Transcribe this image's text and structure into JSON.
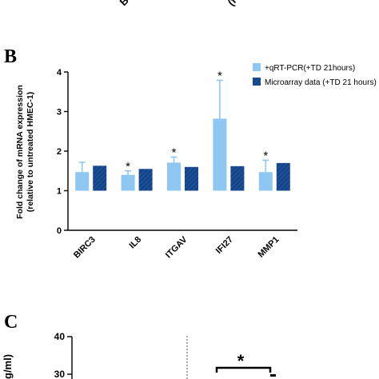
{
  "top_fragment": {
    "tick_labels": [
      "B",
      "(f"
    ]
  },
  "panel_b": {
    "panel_label": "B",
    "chart_data": {
      "type": "bar",
      "categories": [
        "BIRC3",
        "IL8",
        "ITGAV",
        "IFI27",
        "MMP1"
      ],
      "ylabel_line1": "Fold change of mRNA expression",
      "ylabel_line2": "(relative to untreated HMEC-1)",
      "ylim": [
        0,
        4
      ],
      "yticks": [
        "0",
        "1",
        "2",
        "3",
        "4"
      ],
      "baseline": 1,
      "series": [
        {
          "name": "+qRT-PCR(+TD 21hours)",
          "color": "#8ec8f2",
          "pattern": "solid",
          "values": [
            1.47,
            1.4,
            1.71,
            2.82,
            1.47
          ],
          "errors": [
            0.25,
            0.1,
            0.14,
            0.97,
            0.3
          ],
          "significance": [
            "",
            "*",
            "*",
            "*",
            "*"
          ]
        },
        {
          "name": "Microarray data (+TD 21 hours)",
          "color": "#1a4e96",
          "pattern": "hatched",
          "values": [
            1.63,
            1.55,
            1.6,
            1.62,
            1.7
          ],
          "errors": [
            0,
            0,
            0,
            0,
            0
          ],
          "significance": [
            "",
            "",
            "",
            "",
            ""
          ]
        }
      ],
      "legend_position": "top-right"
    }
  },
  "panel_c": {
    "panel_label": "C",
    "ylabel_fragment": "g/ml)",
    "yticks": [
      "40",
      "30"
    ],
    "significance": "*"
  }
}
